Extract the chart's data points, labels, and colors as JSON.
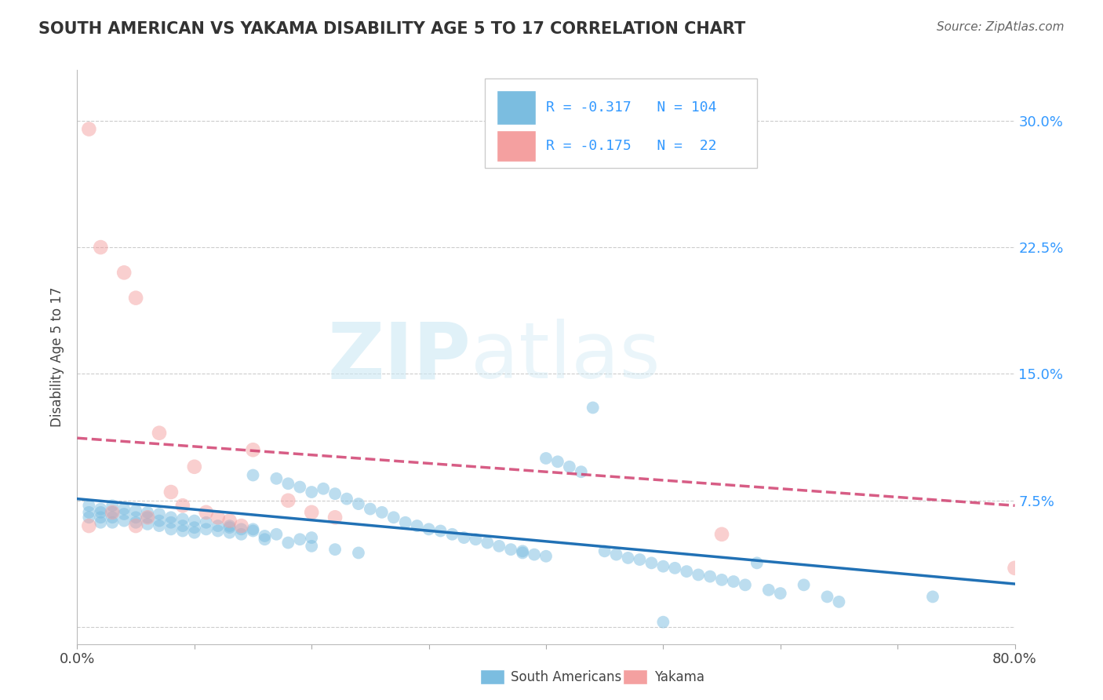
{
  "title": "SOUTH AMERICAN VS YAKAMA DISABILITY AGE 5 TO 17 CORRELATION CHART",
  "source": "Source: ZipAtlas.com",
  "ylabel": "Disability Age 5 to 17",
  "xmin": 0.0,
  "xmax": 0.8,
  "ymin": -0.01,
  "ymax": 0.33,
  "yticks": [
    0.0,
    0.075,
    0.15,
    0.225,
    0.3
  ],
  "ytick_labels": [
    "",
    "7.5%",
    "15.0%",
    "22.5%",
    "30.0%"
  ],
  "xticks": [
    0.0,
    0.1,
    0.2,
    0.3,
    0.4,
    0.5,
    0.6,
    0.7,
    0.8
  ],
  "xtick_labels": [
    "0.0%",
    "",
    "",
    "",
    "",
    "",
    "",
    "",
    "80.0%"
  ],
  "blue_color": "#7bbde0",
  "pink_color": "#f4a0a0",
  "blue_line_color": "#2171b5",
  "pink_line_color": "#d04070",
  "blue_intercept": 0.076,
  "blue_slope": -0.063,
  "pink_intercept": 0.112,
  "pink_slope": -0.05,
  "legend_r_blue": "-0.317",
  "legend_n_blue": "104",
  "legend_r_pink": "-0.175",
  "legend_n_pink": "22",
  "blue_scatter_x": [
    0.01,
    0.01,
    0.01,
    0.02,
    0.02,
    0.02,
    0.02,
    0.03,
    0.03,
    0.03,
    0.03,
    0.04,
    0.04,
    0.04,
    0.05,
    0.05,
    0.05,
    0.06,
    0.06,
    0.06,
    0.07,
    0.07,
    0.07,
    0.08,
    0.08,
    0.08,
    0.09,
    0.09,
    0.09,
    0.1,
    0.1,
    0.1,
    0.11,
    0.11,
    0.12,
    0.12,
    0.13,
    0.13,
    0.14,
    0.14,
    0.15,
    0.15,
    0.16,
    0.16,
    0.17,
    0.18,
    0.19,
    0.2,
    0.2,
    0.21,
    0.22,
    0.23,
    0.24,
    0.25,
    0.26,
    0.27,
    0.28,
    0.29,
    0.3,
    0.31,
    0.32,
    0.33,
    0.34,
    0.35,
    0.36,
    0.37,
    0.38,
    0.39,
    0.4,
    0.41,
    0.42,
    0.43,
    0.44,
    0.45,
    0.46,
    0.47,
    0.48,
    0.49,
    0.5,
    0.51,
    0.52,
    0.53,
    0.54,
    0.55,
    0.56,
    0.57,
    0.58,
    0.59,
    0.6,
    0.62,
    0.64,
    0.65,
    0.38,
    0.4,
    0.18,
    0.2,
    0.22,
    0.24,
    0.17,
    0.19,
    0.13,
    0.15,
    0.73,
    0.5
  ],
  "blue_scatter_y": [
    0.068,
    0.065,
    0.072,
    0.07,
    0.068,
    0.065,
    0.062,
    0.072,
    0.068,
    0.065,
    0.062,
    0.07,
    0.067,
    0.063,
    0.069,
    0.065,
    0.062,
    0.068,
    0.065,
    0.061,
    0.067,
    0.063,
    0.06,
    0.065,
    0.062,
    0.058,
    0.064,
    0.06,
    0.057,
    0.063,
    0.059,
    0.056,
    0.062,
    0.058,
    0.06,
    0.057,
    0.059,
    0.056,
    0.058,
    0.055,
    0.09,
    0.057,
    0.054,
    0.052,
    0.088,
    0.085,
    0.083,
    0.08,
    0.053,
    0.082,
    0.079,
    0.076,
    0.073,
    0.07,
    0.068,
    0.065,
    0.062,
    0.06,
    0.058,
    0.057,
    0.055,
    0.053,
    0.052,
    0.05,
    0.048,
    0.046,
    0.044,
    0.043,
    0.1,
    0.098,
    0.095,
    0.092,
    0.13,
    0.045,
    0.043,
    0.041,
    0.04,
    0.038,
    0.036,
    0.035,
    0.033,
    0.031,
    0.03,
    0.028,
    0.027,
    0.025,
    0.038,
    0.022,
    0.02,
    0.025,
    0.018,
    0.015,
    0.045,
    0.042,
    0.05,
    0.048,
    0.046,
    0.044,
    0.055,
    0.052,
    0.06,
    0.058,
    0.018,
    0.003
  ],
  "pink_scatter_x": [
    0.01,
    0.01,
    0.02,
    0.03,
    0.04,
    0.05,
    0.05,
    0.06,
    0.07,
    0.08,
    0.09,
    0.1,
    0.11,
    0.12,
    0.13,
    0.14,
    0.15,
    0.18,
    0.2,
    0.22,
    0.55,
    0.8
  ],
  "pink_scatter_y": [
    0.295,
    0.06,
    0.225,
    0.068,
    0.21,
    0.195,
    0.06,
    0.065,
    0.115,
    0.08,
    0.072,
    0.095,
    0.068,
    0.065,
    0.063,
    0.06,
    0.105,
    0.075,
    0.068,
    0.065,
    0.055,
    0.035
  ],
  "watermark_zip": "ZIP",
  "watermark_atlas": "atlas",
  "legend_south_americans": "South Americans",
  "legend_yakama": "Yakama"
}
